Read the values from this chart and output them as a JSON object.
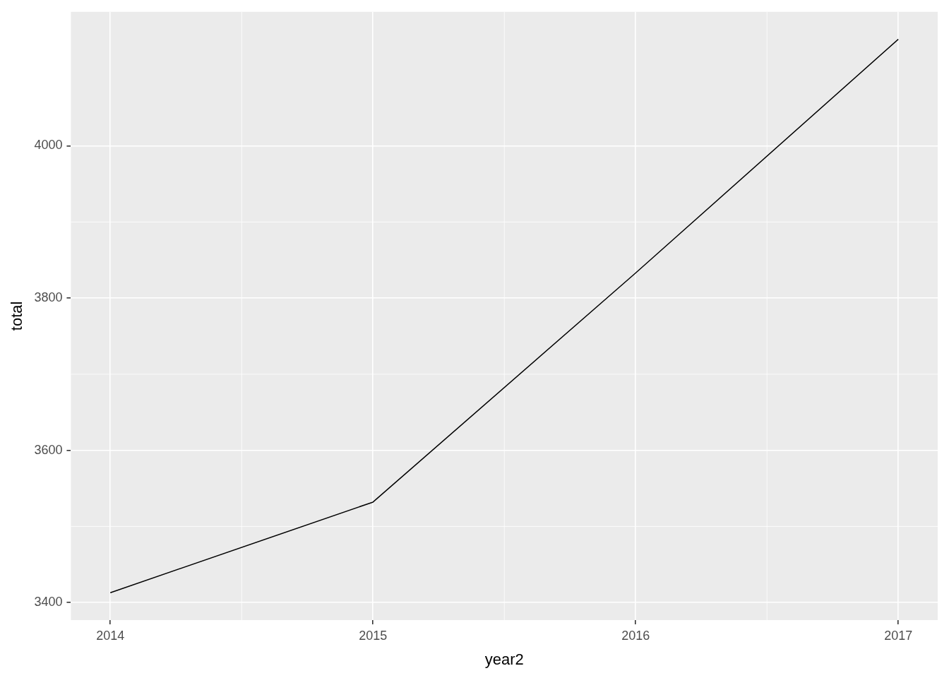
{
  "chart_data": {
    "type": "line",
    "xlabel": "year2",
    "ylabel": "total",
    "x": [
      2014,
      2015,
      2016,
      2017
    ],
    "series": [
      {
        "color": "#000000",
        "values": [
          3413,
          3532,
          3833,
          4140
        ]
      }
    ],
    "xlim": [
      2013.85,
      2017.15
    ],
    "xticks": [
      2014,
      2015,
      2016,
      2017
    ],
    "ylim": [
      3377,
      4176
    ],
    "yticks": [
      3400,
      3600,
      3800,
      4000
    ],
    "grid": true,
    "legend": false,
    "marker": "none",
    "line_style": "solid"
  }
}
